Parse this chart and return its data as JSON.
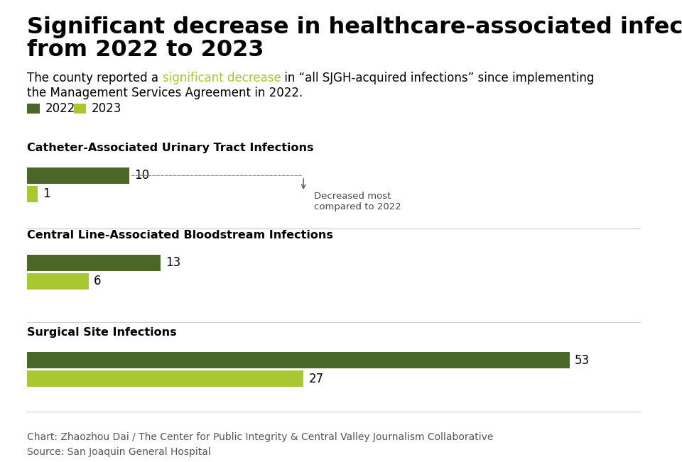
{
  "title_line1": "Significant decrease in healthcare-associated infections",
  "title_line2": "from 2022 to 2023",
  "subtitle_plain1": "The county reported a ",
  "subtitle_highlight": "significant decrease",
  "subtitle_plain2": " in “all SJGH-acquired infections” since implementing",
  "subtitle_line2": "the Management Services Agreement in 2022.",
  "color_2022": "#4a6628",
  "color_2023": "#a8c832",
  "color_highlight": "#a8c832",
  "background_color": "#ffffff",
  "categories": [
    "Catheter-Associated Urinary Tract Infections",
    "Central Line-Associated Bloodstream Infections",
    "Surgical Site Infections"
  ],
  "values_2022": [
    10,
    13,
    53
  ],
  "values_2023": [
    1,
    6,
    27
  ],
  "annotation_text": "Decreased most\ncompared to 2022",
  "footer_line1": "Chart: Zhaozhou Dai / The Center for Public Integrity & Central Valley Journalism Collaborative",
  "footer_line2": "Source: San Joaquin General Hospital",
  "title_fontsize": 23,
  "subtitle_fontsize": 12,
  "category_fontsize": 11.5,
  "bar_label_fontsize": 12,
  "legend_fontsize": 12,
  "footer_fontsize": 10,
  "xlim": [
    0,
    60
  ]
}
